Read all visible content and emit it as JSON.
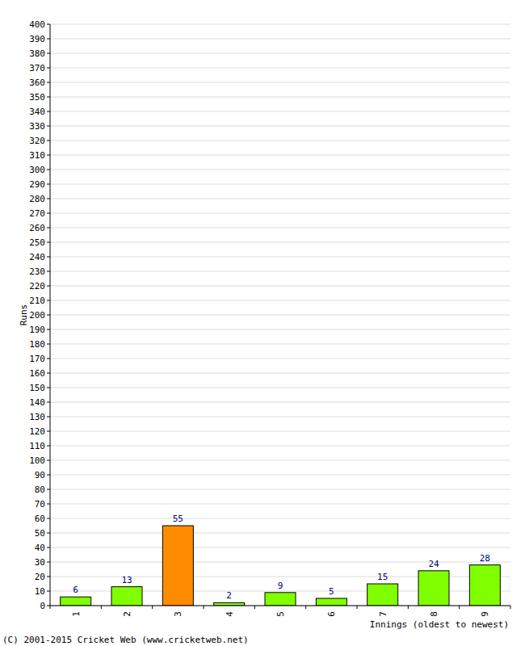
{
  "chart_data": {
    "type": "bar",
    "categories": [
      "1",
      "2",
      "3",
      "4",
      "5",
      "6",
      "7",
      "8",
      "9"
    ],
    "values": [
      6,
      13,
      55,
      2,
      9,
      5,
      15,
      24,
      28
    ],
    "colors": [
      "#80ff00",
      "#80ff00",
      "#ff8c00",
      "#80ff00",
      "#80ff00",
      "#80ff00",
      "#80ff00",
      "#80ff00",
      "#80ff00"
    ],
    "x_label": "Innings (oldest to newest)",
    "y_label": "Runs",
    "annotations": [
      "(C) 2001-2015 Cricket Web (www.cricketweb.net)"
    ],
    "ylim": [
      0,
      400
    ],
    "yticks": [
      0,
      10,
      20,
      30,
      40,
      50,
      60,
      70,
      80,
      90,
      100,
      110,
      120,
      130,
      140,
      150,
      160,
      170,
      180,
      190,
      200,
      210,
      220,
      230,
      240,
      250,
      260,
      270,
      280,
      290,
      300,
      310,
      320,
      330,
      340,
      350,
      360,
      370,
      380,
      390,
      400
    ],
    "grid": true,
    "data_labels": true
  }
}
